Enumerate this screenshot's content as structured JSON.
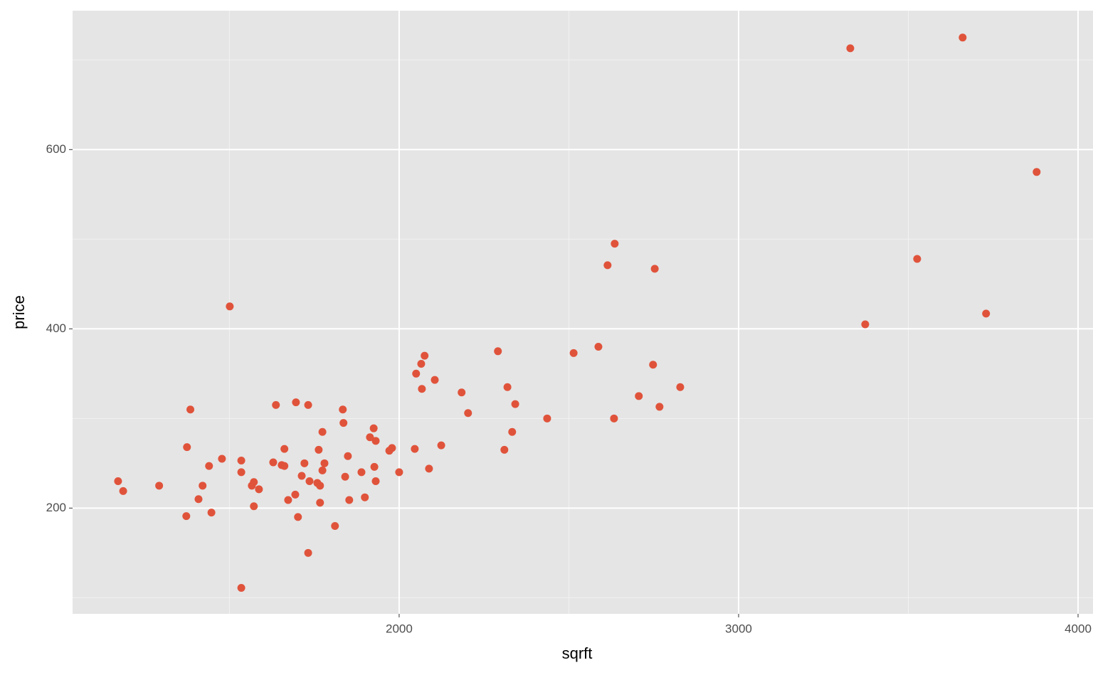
{
  "chart_data": {
    "type": "scatter",
    "x_label": "sqrft",
    "y_label": "price",
    "x": [
      1172,
      1187,
      1293,
      1375,
      1385,
      1373,
      1409,
      1421,
      1440,
      1447,
      1478,
      1501,
      1535,
      1535,
      1535,
      1566,
      1572,
      1572,
      1587,
      1629,
      1637,
      1654,
      1662,
      1662,
      1673,
      1694,
      1696,
      1702,
      1713,
      1721,
      1732,
      1732,
      1736,
      1759,
      1763,
      1767,
      1767,
      1774,
      1774,
      1780,
      1811,
      1834,
      1836,
      1841,
      1849,
      1853,
      1889,
      1899,
      1914,
      1925,
      1927,
      1931,
      1931,
      1971,
      1979,
      2000,
      2046,
      2050,
      2065,
      2067,
      2075,
      2088,
      2105,
      2124,
      2184,
      2203,
      2291,
      2310,
      2319,
      2333,
      2342,
      2436,
      2514,
      2587,
      2614,
      2633,
      2635,
      2706,
      2748,
      2753,
      2767,
      2828,
      3329,
      3373,
      3526,
      3660,
      3729,
      3878
    ],
    "values": [
      230,
      219,
      225,
      268,
      310,
      191,
      210,
      225,
      247,
      195,
      255,
      425,
      253,
      240,
      111,
      225,
      229,
      202,
      221,
      251,
      315,
      248,
      247,
      266,
      209,
      215,
      318,
      190,
      236,
      250,
      315,
      150,
      230,
      228,
      265,
      225,
      206,
      242,
      285,
      250,
      180,
      310,
      295,
      235,
      258,
      209,
      240,
      212,
      279,
      289,
      246,
      275,
      230,
      264,
      267,
      240,
      266,
      350,
      361,
      333,
      370,
      244,
      343,
      270,
      329,
      306,
      375,
      265,
      335,
      285,
      316,
      300,
      373,
      380,
      471,
      300,
      495,
      325,
      360,
      467,
      313,
      335,
      713,
      405,
      478,
      725,
      417,
      575
    ],
    "color": "#e0533b",
    "xlim": [
      1038,
      4044
    ],
    "ylim": [
      82,
      755
    ],
    "xticks": [
      2000,
      3000,
      4000
    ],
    "yticks": [
      200,
      400,
      600
    ],
    "grid": true,
    "minor_grid": true
  }
}
